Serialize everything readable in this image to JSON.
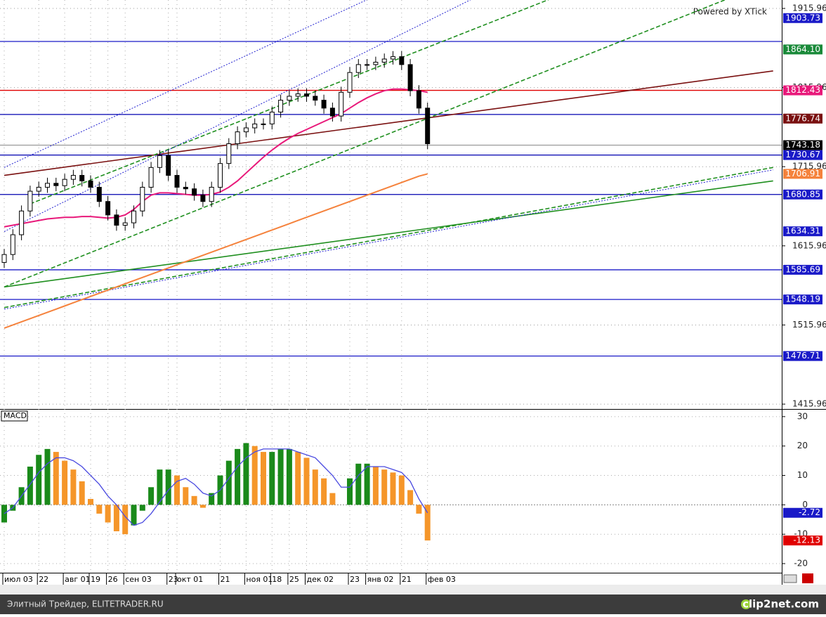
{
  "chart_data": [
    {
      "type": "candlestick",
      "watermark": "Powered by XTick",
      "categories": [
        "июл 03",
        null,
        null,
        null,
        "22",
        null,
        null,
        "авг 01",
        null,
        null,
        "19",
        null,
        "26",
        null,
        "сен 03",
        null,
        null,
        null,
        null,
        "23",
        "окт 01",
        null,
        null,
        null,
        null,
        "21",
        null,
        null,
        "ноя 01",
        null,
        null,
        "18",
        null,
        "25",
        null,
        "дек 02",
        null,
        null,
        null,
        null,
        "23",
        null,
        "янв 02",
        null,
        null,
        null,
        "21",
        null,
        null,
        "фев 03"
      ],
      "open": [
        1595,
        1605,
        1630,
        1660,
        1685,
        1690,
        1695,
        1692,
        1700,
        1705,
        1698,
        1690,
        1672,
        1655,
        1642,
        1645,
        1660,
        1690,
        1715,
        1730,
        1705,
        1690,
        1688,
        1680,
        1672,
        1690,
        1720,
        1745,
        1760,
        1765,
        1770,
        1770,
        1785,
        1800,
        1805,
        1808,
        1805,
        1800,
        1790,
        1780,
        1810,
        1835,
        1845,
        1845,
        1848,
        1852,
        1855,
        1845,
        1812,
        1790
      ],
      "high": [
        1612,
        1637,
        1667,
        1692,
        1697,
        1702,
        1702,
        1707,
        1712,
        1712,
        1705,
        1697,
        1679,
        1662,
        1652,
        1667,
        1697,
        1722,
        1737,
        1737,
        1712,
        1697,
        1695,
        1687,
        1697,
        1727,
        1752,
        1767,
        1772,
        1777,
        1777,
        1792,
        1807,
        1812,
        1815,
        1815,
        1812,
        1807,
        1797,
        1817,
        1842,
        1852,
        1852,
        1855,
        1859,
        1862,
        1862,
        1852,
        1819,
        1797
      ],
      "low": [
        1588,
        1598,
        1623,
        1653,
        1678,
        1683,
        1685,
        1685,
        1693,
        1691,
        1683,
        1665,
        1648,
        1635,
        1635,
        1638,
        1653,
        1683,
        1708,
        1698,
        1683,
        1681,
        1673,
        1665,
        1665,
        1683,
        1713,
        1738,
        1753,
        1758,
        1763,
        1763,
        1778,
        1793,
        1798,
        1798,
        1793,
        1783,
        1773,
        1773,
        1803,
        1828,
        1838,
        1838,
        1841,
        1845,
        1838,
        1805,
        1783,
        1738
      ],
      "close": [
        1605,
        1630,
        1660,
        1685,
        1690,
        1695,
        1692,
        1700,
        1705,
        1698,
        1690,
        1672,
        1655,
        1642,
        1645,
        1660,
        1690,
        1715,
        1730,
        1705,
        1690,
        1688,
        1680,
        1672,
        1690,
        1720,
        1745,
        1760,
        1765,
        1770,
        1770,
        1785,
        1800,
        1805,
        1808,
        1805,
        1800,
        1790,
        1780,
        1810,
        1835,
        1845,
        1845,
        1848,
        1852,
        1855,
        1845,
        1812,
        1790,
        1745
      ],
      "up_color": "#ffffff",
      "down_color": "#000000",
      "ylim": [
        1409.8,
        1926.6
      ],
      "yticks": [
        1415.96,
        1515.96,
        1615.96,
        1715.96,
        1815.96,
        1915.96
      ],
      "ma": [
        {
          "color": "#e8197a",
          "values": [
            1640,
            1642,
            1644,
            1646,
            1648,
            1650,
            1651,
            1652,
            1652,
            1653,
            1653,
            1652,
            1651,
            1652,
            1655,
            1662,
            1672,
            1680,
            1683,
            1683,
            1682,
            1681,
            1680,
            1680,
            1681,
            1684,
            1690,
            1698,
            1708,
            1718,
            1728,
            1737,
            1745,
            1752,
            1758,
            1763,
            1768,
            1773,
            1778,
            1783,
            1790,
            1797,
            1803,
            1808,
            1812,
            1814,
            1814,
            1813,
            1812,
            1810
          ]
        },
        {
          "color": "#f5823c",
          "values": [
            1512,
            1516,
            1520,
            1524,
            1528,
            1532,
            1536,
            1540,
            1544,
            1548,
            1552,
            1556,
            1560,
            1564,
            1568,
            1572,
            1576,
            1580,
            1584,
            1588,
            1592,
            1596,
            1600,
            1604,
            1608,
            1612,
            1616,
            1620,
            1624,
            1628,
            1632,
            1636,
            1640,
            1644,
            1648,
            1652,
            1656,
            1660,
            1664,
            1668,
            1672,
            1676,
            1680,
            1684,
            1688,
            1692,
            1696,
            1700,
            1704,
            1706.91
          ]
        }
      ],
      "levels": [
        {
          "value": 1874.21,
          "color": "#1a1ac8"
        },
        {
          "value": 1812.43,
          "color": "#e00000"
        },
        {
          "value": 1782,
          "color": "#0000b0"
        },
        {
          "value": 1743.18,
          "color": "#a0a0a0"
        },
        {
          "value": 1730.67,
          "color": "#0000b0"
        },
        {
          "value": 1680.85,
          "color": "#0000b0"
        },
        {
          "value": 1585.69,
          "color": "#1a1ac8"
        },
        {
          "value": 1548.19,
          "color": "#1a1ac8"
        },
        {
          "value": 1476.71,
          "color": "#1a1ac8"
        }
      ],
      "trendlines": [
        {
          "color": "#7a1010",
          "style": "solid",
          "from": [
            0,
            1705
          ],
          "to": [
            89,
            1837
          ]
        },
        {
          "color": "#1f8f1f",
          "style": "solid",
          "from": [
            0,
            1564
          ],
          "to": [
            89,
            1698
          ]
        },
        {
          "color": "#1f8f1f",
          "style": "dashed",
          "from": [
            0,
            1538
          ],
          "to": [
            89,
            1715
          ]
        },
        {
          "color": "#2020d0",
          "style": "dotted",
          "from": [
            0,
            1536
          ],
          "to": [
            89,
            1712
          ]
        },
        {
          "color": "#1f8f1f",
          "style": "dashed",
          "from": [
            0,
            1564
          ],
          "to": [
            89,
            1951
          ]
        },
        {
          "color": "#1f8f1f",
          "style": "dashed",
          "from": [
            3,
            1669
          ],
          "to": [
            63,
            1927
          ]
        },
        {
          "color": "#2020d0",
          "style": "dotted",
          "from": [
            0,
            1634
          ],
          "to": [
            54,
            1927
          ]
        },
        {
          "color": "#2020d0",
          "style": "dotted",
          "from": [
            0,
            1715
          ],
          "to": [
            42,
            1927
          ]
        }
      ],
      "price_labels": [
        {
          "value": 1903.73,
          "color": "#1a1ac8"
        },
        {
          "value": 1864.1,
          "label": "1864.10",
          "color": "#1a8a3a"
        },
        {
          "value": 1812.43,
          "color": "#e8197a"
        },
        {
          "value": 1776.74,
          "color": "#7a1010"
        },
        {
          "value": 1743.18,
          "color": "#000000"
        },
        {
          "value": 1730.67,
          "color": "#1a1ac8"
        },
        {
          "value": 1706.91,
          "color": "#f5823c"
        },
        {
          "value": 1680.85,
          "color": "#1a1ac8"
        },
        {
          "value": 1634.31,
          "color": "#1a1ac8"
        },
        {
          "value": 1585.69,
          "color": "#1a1ac8"
        },
        {
          "value": 1548.19,
          "color": "#1a1ac8"
        },
        {
          "value": 1476.71,
          "color": "#1a1ac8"
        }
      ]
    },
    {
      "type": "macd",
      "title": "MACD",
      "ylim": [
        -23.1,
        32.6
      ],
      "yticks": [
        -20,
        -10,
        0,
        10,
        20,
        30
      ],
      "histogram": [
        -6,
        -2,
        6,
        13,
        17,
        19,
        18,
        15,
        12,
        8,
        2,
        -3,
        -6,
        -9,
        -10,
        -7,
        -2,
        6,
        12,
        12,
        10,
        6,
        3,
        -1,
        4,
        10,
        15,
        19,
        21,
        20,
        18,
        18,
        19,
        19,
        18,
        16,
        12,
        9,
        4,
        0,
        9,
        14,
        14,
        13,
        12,
        11,
        10,
        5,
        -3,
        -12.13
      ],
      "up_color": "#1a8a1a",
      "down_color": "#f5962a",
      "signal": {
        "color": "#4a4ae0",
        "values": [
          -3,
          -1,
          3,
          7,
          11,
          14,
          16,
          16,
          15,
          13,
          10,
          7,
          3,
          0,
          -4,
          -7,
          -6,
          -3,
          1,
          5,
          8,
          9,
          7,
          4,
          3,
          5,
          9,
          13,
          16,
          18,
          19,
          19,
          19,
          19,
          18,
          17,
          16,
          13,
          10,
          6,
          6,
          10,
          13,
          13,
          13,
          12,
          11,
          8,
          2,
          -2.72
        ]
      },
      "price_labels": [
        {
          "value": -2.72,
          "color": "#1a1ac8"
        },
        {
          "value": -12.13,
          "color": "#e00000"
        }
      ]
    }
  ],
  "footer": {
    "left": "Элитный Трейдер, ELITETRADER.RU",
    "right": "clip2net.com"
  }
}
